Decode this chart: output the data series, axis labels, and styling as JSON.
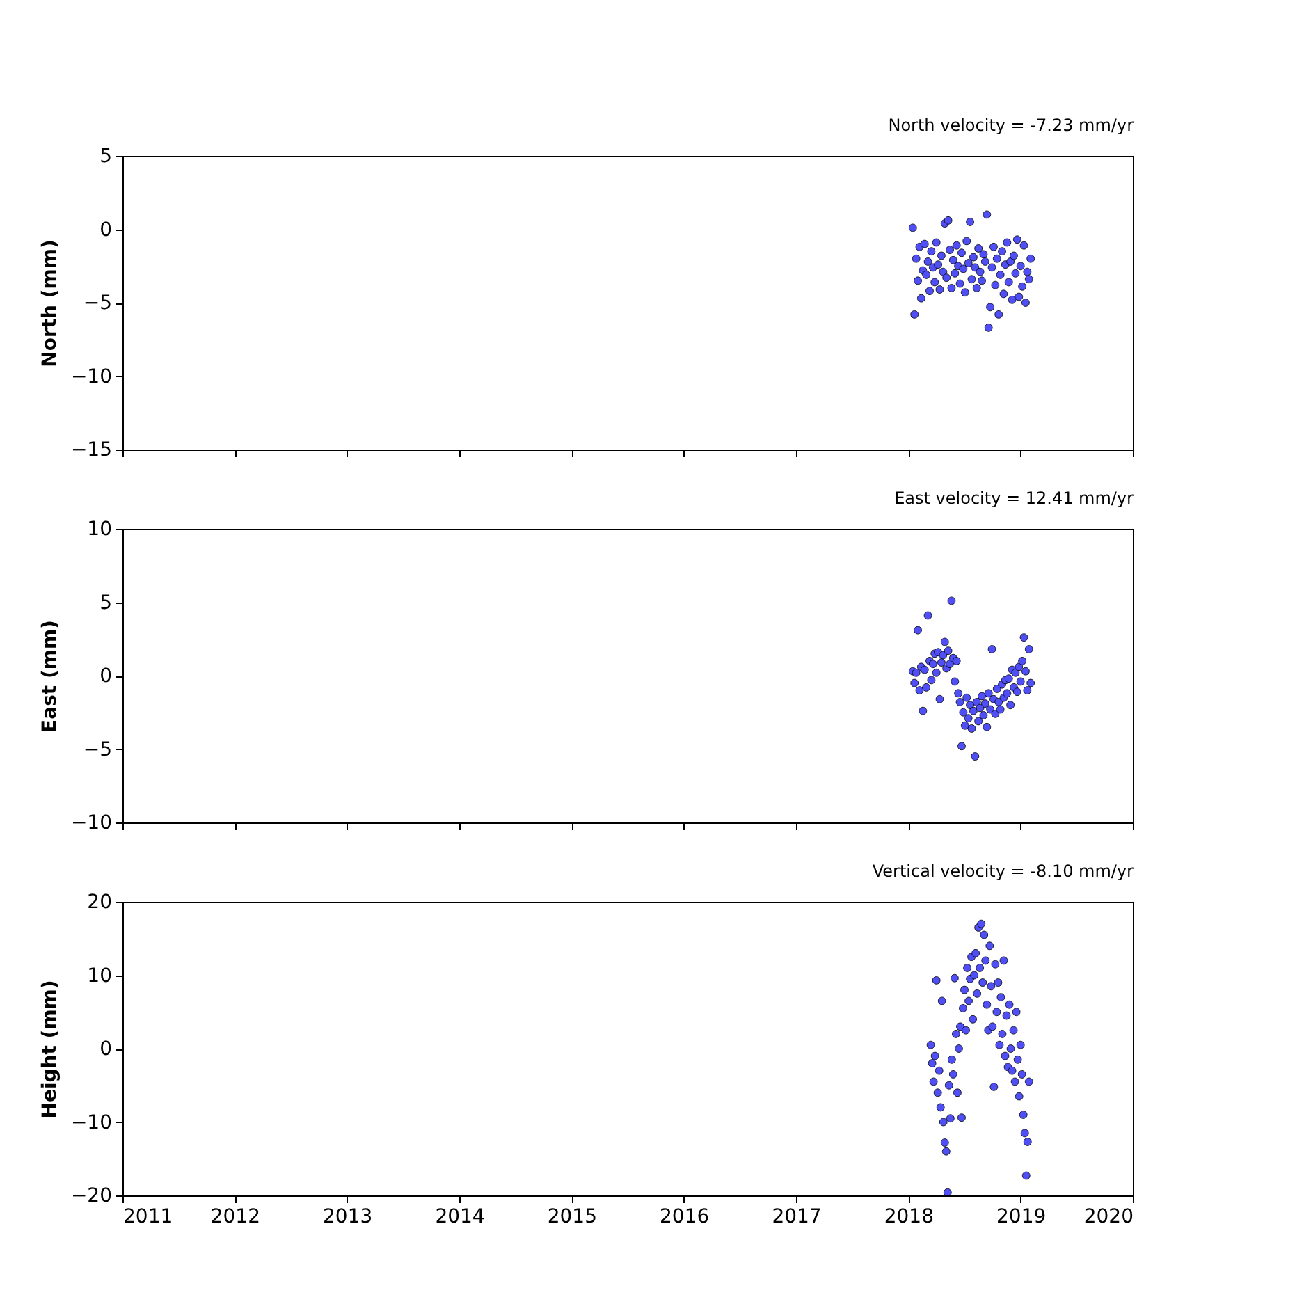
{
  "chart_data": [
    {
      "type": "scatter",
      "title": "North velocity = -7.23 mm/yr",
      "ylabel": "North (mm)",
      "xlim": [
        2011,
        2020
      ],
      "xticks": [
        2011,
        2012,
        2013,
        2014,
        2015,
        2016,
        2017,
        2018,
        2019,
        2020
      ],
      "ylim": [
        -15,
        5
      ],
      "yticks": [
        -15,
        -10,
        -5,
        0,
        5
      ],
      "marker": "circle",
      "tick_labels": "y",
      "series": [
        {
          "color": "#4f4ff5",
          "x": [
            2018.04,
            2018.055,
            2018.07,
            2018.085,
            2018.1,
            2018.115,
            2018.13,
            2018.145,
            2018.16,
            2018.175,
            2018.19,
            2018.205,
            2018.22,
            2018.235,
            2018.25,
            2018.265,
            2018.28,
            2018.295,
            2018.31,
            2018.325,
            2018.34,
            2018.355,
            2018.37,
            2018.385,
            2018.4,
            2018.415,
            2018.43,
            2018.445,
            2018.46,
            2018.475,
            2018.49,
            2018.505,
            2018.52,
            2018.535,
            2018.55,
            2018.565,
            2018.58,
            2018.595,
            2018.61,
            2018.625,
            2018.64,
            2018.655,
            2018.67,
            2018.685,
            2018.7,
            2018.715,
            2018.73,
            2018.745,
            2018.76,
            2018.775,
            2018.79,
            2018.805,
            2018.82,
            2018.835,
            2018.85,
            2018.865,
            2018.88,
            2018.895,
            2018.91,
            2018.925,
            2018.94,
            2018.955,
            2018.97,
            2018.985,
            2019.0,
            2019.015,
            2019.03,
            2019.045,
            2019.06,
            2019.075,
            2019.09
          ],
          "values": [
            0.1,
            -5.8,
            -2.0,
            -3.5,
            -1.2,
            -4.7,
            -2.8,
            -1.0,
            -3.1,
            -2.2,
            -4.2,
            -1.5,
            -2.6,
            -3.6,
            -0.9,
            -2.4,
            -4.1,
            -1.8,
            -2.9,
            0.4,
            -3.3,
            0.6,
            -1.4,
            -4.0,
            -2.1,
            -3.0,
            -1.1,
            -2.5,
            -3.7,
            -1.6,
            -2.7,
            -4.3,
            -0.8,
            -2.3,
            0.5,
            -3.4,
            -1.9,
            -2.6,
            -4.0,
            -1.3,
            -2.9,
            -3.5,
            -1.7,
            -2.2,
            1.0,
            -6.7,
            -5.3,
            -2.6,
            -1.2,
            -3.8,
            -2.0,
            -5.8,
            -3.1,
            -1.5,
            -4.4,
            -2.4,
            -0.9,
            -3.6,
            -2.2,
            -4.8,
            -1.8,
            -3.0,
            -0.7,
            -4.6,
            -2.5,
            -3.9,
            -1.1,
            -5.0,
            -2.9,
            -3.4,
            -2.0
          ]
        }
      ]
    },
    {
      "type": "scatter",
      "title": "East velocity = 12.41 mm/yr",
      "ylabel": "East (mm)",
      "xlim": [
        2011,
        2020
      ],
      "xticks": [
        2011,
        2012,
        2013,
        2014,
        2015,
        2016,
        2017,
        2018,
        2019,
        2020
      ],
      "ylim": [
        -10,
        10
      ],
      "yticks": [
        -10,
        -5,
        0,
        5,
        10
      ],
      "marker": "circle",
      "tick_labels": "y",
      "series": [
        {
          "color": "#4f4ff5",
          "x": [
            2018.04,
            2018.055,
            2018.07,
            2018.085,
            2018.1,
            2018.115,
            2018.13,
            2018.145,
            2018.16,
            2018.175,
            2018.19,
            2018.205,
            2018.22,
            2018.235,
            2018.25,
            2018.265,
            2018.28,
            2018.295,
            2018.31,
            2018.325,
            2018.34,
            2018.355,
            2018.37,
            2018.385,
            2018.4,
            2018.415,
            2018.43,
            2018.445,
            2018.46,
            2018.475,
            2018.49,
            2018.505,
            2018.52,
            2018.535,
            2018.55,
            2018.565,
            2018.58,
            2018.595,
            2018.61,
            2018.625,
            2018.64,
            2018.655,
            2018.67,
            2018.685,
            2018.7,
            2018.715,
            2018.73,
            2018.745,
            2018.76,
            2018.775,
            2018.79,
            2018.805,
            2018.82,
            2018.835,
            2018.85,
            2018.865,
            2018.88,
            2018.895,
            2018.91,
            2018.925,
            2018.94,
            2018.955,
            2018.97,
            2018.985,
            2019.0,
            2019.015,
            2019.03,
            2019.045,
            2019.06,
            2019.075,
            2019.09
          ],
          "values": [
            0.3,
            -0.5,
            0.2,
            3.1,
            -1.0,
            0.6,
            -2.4,
            0.4,
            -0.8,
            4.1,
            1.0,
            -0.3,
            0.8,
            1.5,
            0.2,
            1.6,
            -1.6,
            0.9,
            1.4,
            2.3,
            0.5,
            1.7,
            0.8,
            5.1,
            1.2,
            -0.4,
            1.0,
            -1.2,
            -1.8,
            -4.8,
            -2.5,
            -3.4,
            -1.5,
            -2.9,
            -2.0,
            -3.6,
            -2.4,
            -5.5,
            -1.8,
            -3.1,
            -2.2,
            -1.4,
            -2.7,
            -1.9,
            -3.5,
            -1.2,
            -2.3,
            1.8,
            -1.6,
            -2.6,
            -0.9,
            -1.8,
            -2.3,
            -0.6,
            -1.5,
            -0.3,
            -1.2,
            -0.2,
            -2.0,
            0.4,
            -0.8,
            0.2,
            -1.1,
            0.6,
            -0.4,
            1.0,
            2.6,
            0.3,
            -1.0,
            1.8,
            -0.5
          ]
        }
      ]
    },
    {
      "type": "scatter",
      "title": "Vertical velocity = -8.10 mm/yr",
      "ylabel": "Height (mm)",
      "xlim": [
        2011,
        2020
      ],
      "xticks": [
        2011,
        2012,
        2013,
        2014,
        2015,
        2016,
        2017,
        2018,
        2019,
        2020
      ],
      "ylim": [
        -20,
        20
      ],
      "yticks": [
        -20,
        -10,
        0,
        10,
        20
      ],
      "marker": "circle",
      "series": [
        {
          "color": "#4f4ff5",
          "x": [
            2018.2,
            2018.2125,
            2018.225,
            2018.2375,
            2018.25,
            2018.2625,
            2018.275,
            2018.2875,
            2018.3,
            2018.3125,
            2018.325,
            2018.3375,
            2018.35,
            2018.3625,
            2018.375,
            2018.3875,
            2018.4,
            2018.4125,
            2018.425,
            2018.4375,
            2018.45,
            2018.4625,
            2018.475,
            2018.4875,
            2018.5,
            2018.5125,
            2018.525,
            2018.5375,
            2018.55,
            2018.5625,
            2018.575,
            2018.5875,
            2018.6,
            2018.6125,
            2018.625,
            2018.6375,
            2018.65,
            2018.6625,
            2018.675,
            2018.6875,
            2018.7,
            2018.7125,
            2018.725,
            2018.7375,
            2018.75,
            2018.7625,
            2018.775,
            2018.7875,
            2018.8,
            2018.8125,
            2018.825,
            2018.8375,
            2018.85,
            2018.8625,
            2018.875,
            2018.8875,
            2018.9,
            2018.9125,
            2018.925,
            2018.9375,
            2018.95,
            2018.9625,
            2018.975,
            2018.9875,
            2019.0,
            2019.0125,
            2019.025,
            2019.0375,
            2019.05,
            2019.0625,
            2019.075
          ],
          "values": [
            0.5,
            -2.0,
            -4.5,
            -1.0,
            9.3,
            -6.0,
            -3.0,
            -8.0,
            6.5,
            -10.0,
            -12.8,
            -14.0,
            -19.6,
            -5.0,
            -9.5,
            -1.5,
            -3.5,
            9.6,
            2.0,
            -6.0,
            0.0,
            3.0,
            -9.4,
            5.5,
            8.0,
            2.5,
            11.0,
            6.5,
            9.5,
            12.5,
            4.0,
            10.0,
            13.0,
            7.5,
            16.5,
            11.0,
            17.0,
            9.0,
            15.5,
            12.0,
            6.0,
            2.5,
            14.0,
            8.5,
            3.0,
            -5.2,
            11.5,
            5.0,
            9.0,
            0.5,
            7.0,
            2.0,
            12.0,
            -1.0,
            4.5,
            -2.5,
            6.0,
            0.0,
            -3.0,
            2.5,
            -4.5,
            5.0,
            -1.5,
            -6.5,
            0.5,
            -3.5,
            -9.0,
            -11.5,
            -17.3,
            -12.7,
            -4.5
          ]
        }
      ]
    }
  ]
}
